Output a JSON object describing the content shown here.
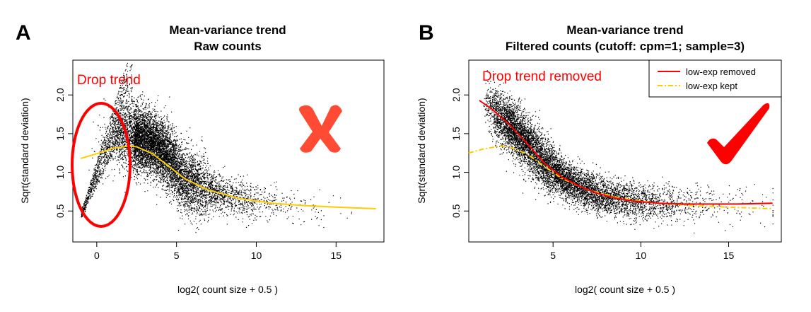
{
  "figure": {
    "panel_a_letter": "A",
    "panel_b_letter": "B",
    "colors": {
      "points": "#000000",
      "annotation": "#ff0000",
      "mark": "#ff4b33",
      "trend_yellow": "#ffcc00",
      "trend_red": "#ff0000"
    }
  },
  "chart_data": [
    {
      "type": "scatter",
      "title": "Mean-variance trend",
      "subtitle": "Raw counts",
      "xlabel": "log2( count size + 0.5 )",
      "ylabel": "Sqrt(standard deviation)",
      "xlim": [
        -1.5,
        18
      ],
      "ylim": [
        0.1,
        2.45
      ],
      "x_ticks": [
        0,
        5,
        10,
        15
      ],
      "y_ticks": [
        0.5,
        1.0,
        1.5,
        2.0
      ],
      "x_tick_labels": [
        "0",
        "5",
        "10",
        "15"
      ],
      "y_tick_labels": [
        "0.5",
        "1.0",
        "1.5",
        "2.0"
      ],
      "legend": null,
      "annotations": {
        "text": "Drop trend",
        "mark": "cross"
      },
      "series": [
        {
          "kind": "points",
          "description_points": 9000
        },
        {
          "kind": "line",
          "color": "#ffcc00",
          "x": [
            -1,
            0,
            1,
            2,
            2.5,
            3.5,
            4.5,
            5.5,
            7,
            9,
            11,
            13,
            15,
            17.5
          ],
          "y": [
            1.18,
            1.24,
            1.31,
            1.34,
            1.33,
            1.24,
            1.08,
            0.92,
            0.77,
            0.66,
            0.6,
            0.57,
            0.55,
            0.53
          ]
        }
      ]
    },
    {
      "type": "scatter",
      "title": "Mean-variance trend",
      "subtitle": "Filtered counts (cutoff: cpm=1; sample=3)",
      "xlabel": "log2( count size + 0.5 )",
      "ylabel": "Sqrt(standard deviation)",
      "xlim": [
        0.2,
        18
      ],
      "ylim": [
        0.1,
        2.45
      ],
      "x_ticks": [
        5,
        10,
        15
      ],
      "y_ticks": [
        0.5,
        1.0,
        1.5,
        2.0
      ],
      "x_tick_labels": [
        "5",
        "10",
        "15"
      ],
      "y_tick_labels": [
        "0.5",
        "1.0",
        "1.5",
        "2.0"
      ],
      "legend": {
        "position": "top-right",
        "entries": [
          "low-exp removed",
          "low-exp kept"
        ]
      },
      "annotations": {
        "text": "Drop trend removed",
        "mark": "check"
      },
      "series": [
        {
          "kind": "points",
          "description_points": 8000
        },
        {
          "name": "low-exp removed",
          "kind": "line",
          "color": "#ff0000",
          "x": [
            0.8,
            1.5,
            2.5,
            3.5,
            4.5,
            5.5,
            6.5,
            7.5,
            8.5,
            9.5,
            11,
            12.5,
            14,
            15.5,
            17.5
          ],
          "y": [
            1.93,
            1.82,
            1.62,
            1.38,
            1.12,
            0.94,
            0.82,
            0.73,
            0.67,
            0.63,
            0.6,
            0.59,
            0.59,
            0.59,
            0.6
          ]
        },
        {
          "name": "low-exp kept",
          "kind": "line",
          "color": "#ffcc00",
          "dash": true,
          "x": [
            0.2,
            1,
            2,
            2.5,
            3.5,
            4.5,
            5.5,
            7,
            9,
            11,
            13,
            15,
            17.5
          ],
          "y": [
            1.25,
            1.3,
            1.34,
            1.33,
            1.24,
            1.08,
            0.92,
            0.77,
            0.66,
            0.6,
            0.57,
            0.55,
            0.53
          ]
        }
      ]
    }
  ]
}
